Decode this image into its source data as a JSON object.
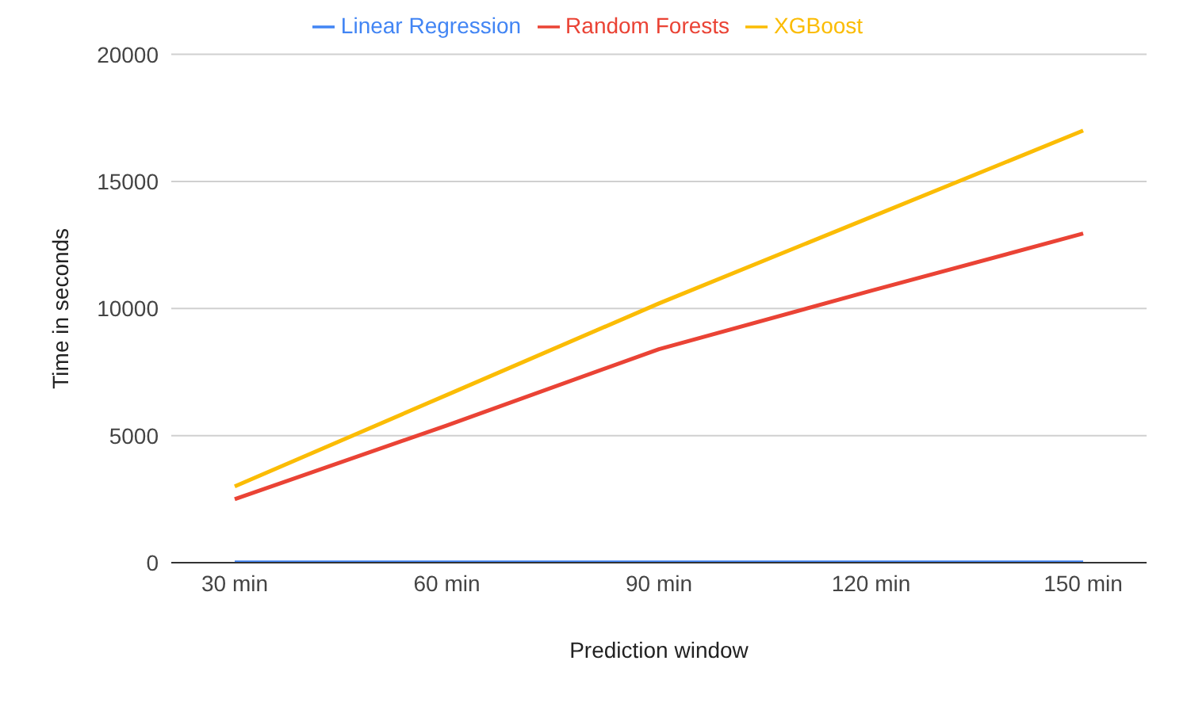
{
  "chart_data": {
    "type": "line",
    "xlabel": "Prediction window",
    "ylabel": "Time in seconds",
    "categories": [
      "30 min",
      "60 min",
      "90 min",
      "120 min",
      "150 min"
    ],
    "series": [
      {
        "name": "Linear Regression",
        "color": "#4285f4",
        "values": [
          10,
          10,
          10,
          10,
          10
        ]
      },
      {
        "name": "Random Forests",
        "color": "#ea4335",
        "values": [
          2500,
          5400,
          8400,
          10700,
          12950
        ]
      },
      {
        "name": "XGBoost",
        "color": "#fbbc04",
        "values": [
          3000,
          6600,
          10200,
          13600,
          17000
        ]
      }
    ],
    "ylim": [
      0,
      20000
    ],
    "yticks": [
      0,
      5000,
      10000,
      15000,
      20000
    ],
    "grid": "y",
    "legend": "top",
    "marker": "none",
    "line_style": "solid"
  }
}
